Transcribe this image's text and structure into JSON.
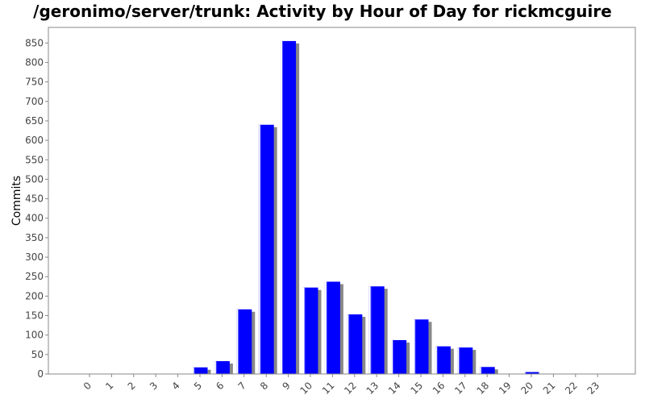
{
  "chart_data": {
    "type": "bar",
    "title": "/geronimo/server/trunk: Activity by Hour of Day for rickmcguire",
    "xlabel": "",
    "ylabel": "Commits",
    "categories": [
      "0",
      "1",
      "2",
      "3",
      "4",
      "5",
      "6",
      "7",
      "8",
      "9",
      "10",
      "11",
      "12",
      "13",
      "14",
      "15",
      "16",
      "17",
      "18",
      "19",
      "20",
      "21",
      "22",
      "23"
    ],
    "values": [
      0,
      0,
      0,
      0,
      0,
      17,
      33,
      166,
      640,
      855,
      222,
      237,
      153,
      225,
      87,
      140,
      71,
      68,
      18,
      0,
      5,
      0,
      0,
      0
    ],
    "y_ticks": [
      0,
      50,
      100,
      150,
      200,
      250,
      300,
      350,
      400,
      450,
      500,
      550,
      600,
      650,
      700,
      750,
      800,
      850
    ],
    "ylim": [
      0,
      890
    ],
    "grid": false,
    "legend": "none",
    "colors": {
      "bar": "#0000ff",
      "bar_highlight": "#4444ff",
      "shadow": "#888888",
      "axis": "#888888"
    }
  }
}
